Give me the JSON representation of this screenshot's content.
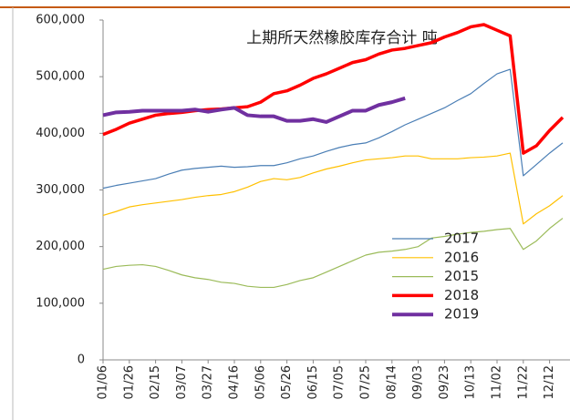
{
  "chart_data": {
    "type": "line",
    "title": "上期所天然橡胶库存合计   吨",
    "categories": [
      "01/06",
      null,
      "01/26",
      null,
      "02/15",
      null,
      "03/07",
      null,
      "03/27",
      null,
      "04/16",
      null,
      "05/06",
      null,
      "05/26",
      null,
      "06/15",
      null,
      "07/05",
      null,
      "07/25",
      null,
      "08/14",
      null,
      "09/03",
      null,
      "09/23",
      null,
      "10/13",
      null,
      "11/02",
      null,
      "11/22",
      null,
      "12/12",
      null
    ],
    "series": [
      {
        "name": "2017",
        "color": "#4a7eb5",
        "width": 1.2,
        "values": [
          303000,
          308000,
          312000,
          316000,
          320000,
          328000,
          335000,
          338000,
          340000,
          342000,
          340000,
          341000,
          343000,
          343000,
          348000,
          355000,
          360000,
          368000,
          375000,
          380000,
          383000,
          392000,
          403000,
          415000,
          425000,
          435000,
          445000,
          458000,
          470000,
          488000,
          505000,
          513000,
          325000,
          345000,
          365000,
          383000
        ]
      },
      {
        "name": "2016",
        "color": "#ffc000",
        "width": 1.2,
        "values": [
          255000,
          262000,
          270000,
          274000,
          277000,
          280000,
          283000,
          287000,
          290000,
          292000,
          297000,
          305000,
          315000,
          320000,
          318000,
          322000,
          330000,
          337000,
          342000,
          348000,
          353000,
          355000,
          357000,
          360000,
          360000,
          355000,
          355000,
          355000,
          357000,
          358000,
          360000,
          365000,
          240000,
          258000,
          272000,
          290000
        ]
      },
      {
        "name": "2015",
        "color": "#9bbb59",
        "width": 1.2,
        "values": [
          160000,
          165000,
          167000,
          168000,
          165000,
          158000,
          150000,
          145000,
          142000,
          137000,
          135000,
          130000,
          128000,
          128000,
          133000,
          140000,
          145000,
          155000,
          165000,
          175000,
          185000,
          190000,
          192000,
          195000,
          200000,
          215000,
          218000,
          222000,
          225000,
          227000,
          230000,
          232000,
          195000,
          210000,
          232000,
          250000
        ]
      },
      {
        "name": "2018",
        "color": "#ff0000",
        "width": 3.5,
        "values": [
          398000,
          407000,
          418000,
          425000,
          432000,
          435000,
          437000,
          440000,
          442000,
          443000,
          445000,
          447000,
          455000,
          470000,
          475000,
          485000,
          497000,
          505000,
          515000,
          525000,
          530000,
          540000,
          547000,
          550000,
          555000,
          560000,
          570000,
          578000,
          588000,
          592000,
          582000,
          572000,
          365000,
          378000,
          405000,
          428000
        ]
      },
      {
        "name": "2019",
        "color": "#7030a0",
        "width": 4,
        "values": [
          432000,
          437000,
          438000,
          440000,
          440000,
          440000,
          440000,
          442000,
          438000,
          442000,
          445000,
          432000,
          430000,
          430000,
          422000,
          422000,
          425000,
          420000,
          430000,
          440000,
          440000,
          450000,
          455000,
          462000,
          null,
          null,
          null,
          null,
          null,
          null,
          null,
          null,
          null,
          null,
          null,
          null
        ]
      }
    ],
    "ylim": [
      0,
      600000
    ],
    "yticks": [
      0,
      {
        "value": 100000,
        "label": "100,000"
      },
      {
        "value": 200000,
        "label": "200,000"
      },
      {
        "value": 300000,
        "label": "300,000"
      },
      {
        "value": 400000,
        "label": "400,000"
      },
      {
        "value": 500000,
        "label": "500,000"
      },
      {
        "value": 600000,
        "label": "600,000"
      }
    ]
  }
}
